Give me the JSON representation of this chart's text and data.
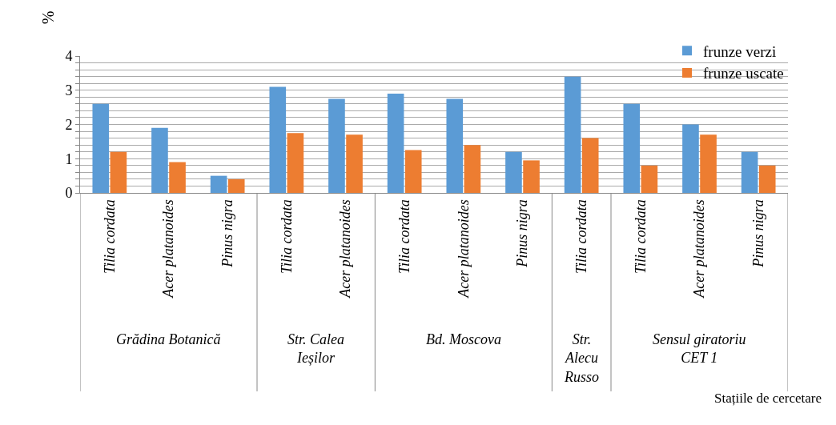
{
  "chart_data": {
    "type": "bar",
    "ylabel": "%",
    "categories": [
      "Tilia cordata",
      "Acer platanoides",
      "Pinus nigra",
      "Tilia cordata",
      "Acer platanoides",
      "Tilia cordata",
      "Acer platanoides",
      "Pinus nigra",
      "Tilia cordata",
      "Tilia cordata",
      "Acer platanoides",
      "Pinus nigra"
    ],
    "series": [
      {
        "name": "frunze verzi",
        "color": "#5b9bd5",
        "values": [
          2.6,
          1.9,
          0.5,
          3.1,
          2.75,
          2.9,
          2.75,
          1.2,
          3.4,
          2.6,
          2.0,
          1.2
        ]
      },
      {
        "name": "frunze uscate",
        "color": "#ed7d31",
        "values": [
          1.2,
          0.9,
          0.4,
          1.75,
          1.7,
          1.25,
          1.4,
          0.95,
          1.6,
          0.8,
          1.7,
          0.8
        ]
      }
    ],
    "annotations": [
      "Grădina Botanică",
      "Str. Calea\nIeșilor",
      "Bd. Moscova",
      "Str.\nAlecu\nRusso",
      "Sensul giratoriu\nCET 1",
      "Stațiile de cercetare"
    ],
    "ylim": [
      0,
      4
    ],
    "yticks": [
      0,
      {
        "value": 0.2,
        "label": null
      },
      {
        "value": 0.4,
        "label": null
      },
      {
        "value": 0.6,
        "label": null
      },
      {
        "value": 0.8,
        "label": null
      },
      1,
      {
        "value": 1.2,
        "label": null
      },
      {
        "value": 1.4,
        "label": null
      },
      {
        "value": 1.6,
        "label": null
      },
      {
        "value": 1.8,
        "label": null
      },
      2,
      {
        "value": 2.2,
        "label": null
      },
      {
        "value": 2.4,
        "label": null
      },
      {
        "value": 2.6,
        "label": null
      },
      {
        "value": 2.8,
        "label": null
      },
      3,
      {
        "value": 3.2,
        "label": null
      },
      {
        "value": 3.4,
        "label": null
      },
      {
        "value": 3.6,
        "label": null
      },
      {
        "value": 3.8,
        "label": null
      },
      4
    ],
    "grid": "y",
    "legend": "top right"
  }
}
